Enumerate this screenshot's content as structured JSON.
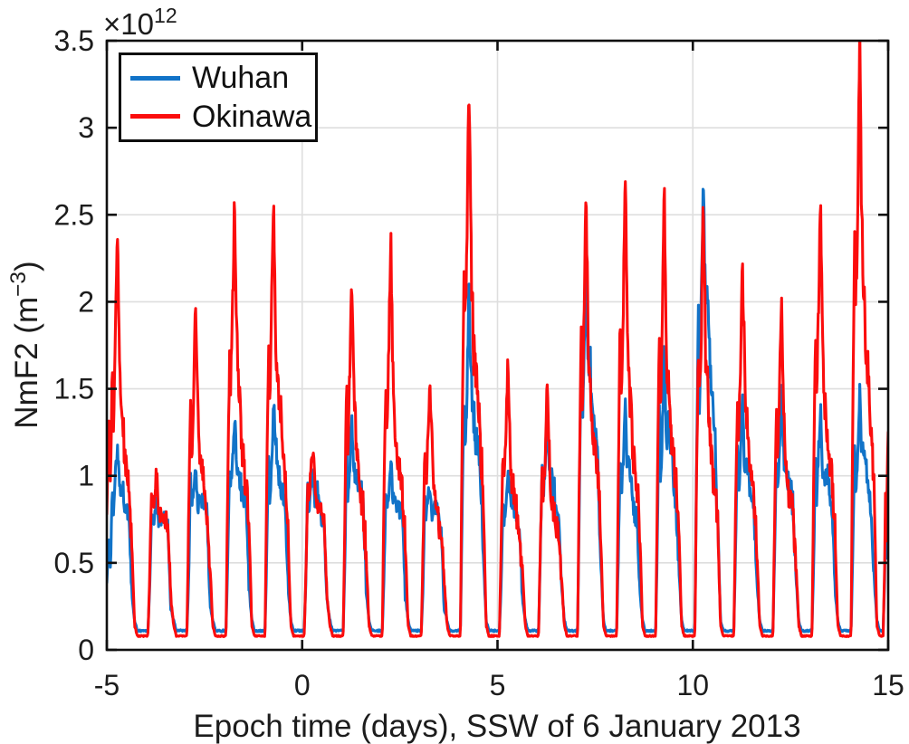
{
  "chart_data": {
    "type": "line",
    "title": "",
    "xlabel": "Epoch time (days), SSW of 6 January 2013",
    "ylabel": "NmF2 (m⁻³)",
    "ylabel_parts": {
      "pre": "NmF2 (m",
      "sup": "−3",
      "post": ")"
    },
    "y_exponent": {
      "base": "×10",
      "power": "12"
    },
    "xlim": [
      -5,
      15
    ],
    "ylim_e12": [
      0,
      3.5
    ],
    "xticks": [
      -5,
      0,
      5,
      10,
      15
    ],
    "xtick_labels": [
      "-5",
      "0",
      "5",
      "10",
      "15"
    ],
    "yticks_e12": [
      0,
      0.5,
      1,
      1.5,
      2,
      2.5,
      3,
      3.5
    ],
    "ytick_labels": [
      "0",
      "0.5",
      "1",
      "1.5",
      "2",
      "2.5",
      "3",
      "3.5"
    ],
    "grid": {
      "show": true,
      "color": "#dedede",
      "x_grid_at": [
        0,
        5,
        10
      ],
      "y_grid_at": [
        0.5,
        1,
        1.5,
        2,
        2.5,
        3
      ]
    },
    "axis_color": "#0f0f0f",
    "legend": {
      "position": "top-left",
      "entries": [
        {
          "label": "Wuhan",
          "color": "#1173c8"
        },
        {
          "label": "Okinawa",
          "color": "#fb0d0d"
        }
      ]
    },
    "daily_peaks": {
      "description": "Daily diurnal peak NmF2 per epoch day, units ×10¹² m⁻³; curves are diurnal (sharp daytime maximum near day+0.27, low flat night ~0.1)",
      "days": [
        -5,
        -4,
        -3,
        -2,
        -1,
        0,
        1,
        2,
        3,
        4,
        5,
        6,
        7,
        8,
        9,
        10,
        11,
        12,
        13,
        14
      ],
      "series": [
        {
          "name": "Wuhan",
          "peaks": [
            1.17,
            0.88,
            1.05,
            1.35,
            1.45,
            1.05,
            1.33,
            1.1,
            0.95,
            2.06,
            1.0,
            1.35,
            2.23,
            1.46,
            1.79,
            2.71,
            1.55,
            1.53,
            1.37,
            1.51
          ]
        },
        {
          "name": "Okinawa",
          "peaks": [
            2.4,
            1.05,
            2.05,
            2.59,
            2.62,
            1.15,
            2.12,
            2.36,
            1.54,
            3.26,
            1.7,
            1.52,
            2.65,
            2.68,
            2.62,
            2.6,
            2.22,
            2.03,
            2.6,
            3.55
          ]
        }
      ],
      "night_min_e12": {
        "Wuhan": 0.11,
        "Okinawa": 0.08
      },
      "peak_time_offset_days": 0.27,
      "edge_rise_e12": {
        "Wuhan": 1.05,
        "Okinawa": 1.25
      }
    }
  }
}
